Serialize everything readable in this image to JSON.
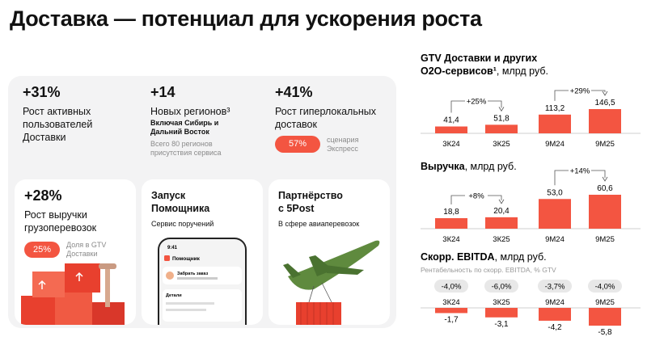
{
  "header": {
    "title": "Доставка — потенциал для ускорения роста"
  },
  "highlights": [
    {
      "value": "+31%",
      "text": [
        "Рост активных",
        "пользователей",
        "Доставки"
      ]
    },
    {
      "value": "+14",
      "text": [
        "Новых регионов³"
      ],
      "note": [
        "Включая Сибирь и",
        "Дальний Восток"
      ],
      "footnote": [
        "Всего 80 регионов",
        "присутствия сервиса"
      ]
    },
    {
      "value": "+41%",
      "text": [
        "Рост гиперлокальных",
        "доставок"
      ],
      "badge": "57%",
      "badge_note": [
        "сценария",
        "Экспресс"
      ]
    }
  ],
  "cards": [
    {
      "value": "+28%",
      "text": [
        "Рост выручки",
        "грузоперевозок"
      ],
      "badge": "25%",
      "badge_note": [
        "Доля в GTV",
        "Доставки"
      ]
    },
    {
      "heading": [
        "Запуск",
        "Помощника"
      ],
      "text": "Сервис поручений",
      "phone": {
        "time": "9:41",
        "app": "Помощник",
        "task": "Забрать заказ",
        "section": "Детали"
      }
    },
    {
      "heading": [
        "Партнёрство",
        "с 5Post"
      ],
      "text": "В сфере авиаперевозок"
    }
  ],
  "chart_data": [
    {
      "type": "bar",
      "title": [
        "GTV Доставки и других",
        "O2O-сервисов¹"
      ],
      "unit": ", млрд руб.",
      "categories": [
        "3К24",
        "3К25",
        "9М24",
        "9М25"
      ],
      "values": [
        41.4,
        51.8,
        113.2,
        146.5
      ],
      "value_labels": [
        "41,4",
        "51,8",
        "113,2",
        "146,5"
      ],
      "growth_labels": [
        "+25%",
        "+29%"
      ],
      "color": "#f35541"
    },
    {
      "type": "bar",
      "title": [
        "Выручка"
      ],
      "unit": ", млрд руб.",
      "categories": [
        "3К24",
        "3К25",
        "9М24",
        "9М25"
      ],
      "values": [
        18.8,
        20.4,
        53.0,
        60.6
      ],
      "value_labels": [
        "18,8",
        "20,4",
        "53,0",
        "60,6"
      ],
      "growth_labels": [
        "+8%",
        "+14%"
      ],
      "color": "#f35541"
    },
    {
      "type": "bar",
      "title": [
        "Скорр. EBITDA"
      ],
      "unit": ", млрд руб.",
      "subtitle": "Рентабельность по скорр. EBITDA, % GTV",
      "categories": [
        "3К24",
        "3К25",
        "9М24",
        "9М25"
      ],
      "values": [
        -1.7,
        -3.1,
        -4.2,
        -5.8
      ],
      "value_labels": [
        "-1,7",
        "-3,1",
        "-4,2",
        "-5,8"
      ],
      "margins": [
        -4.0,
        -6.0,
        -3.7,
        -4.0
      ],
      "margin_labels": [
        "-4,0%",
        "-6,0%",
        "-3,7%",
        "-4,0%"
      ],
      "color": "#f35541"
    }
  ]
}
